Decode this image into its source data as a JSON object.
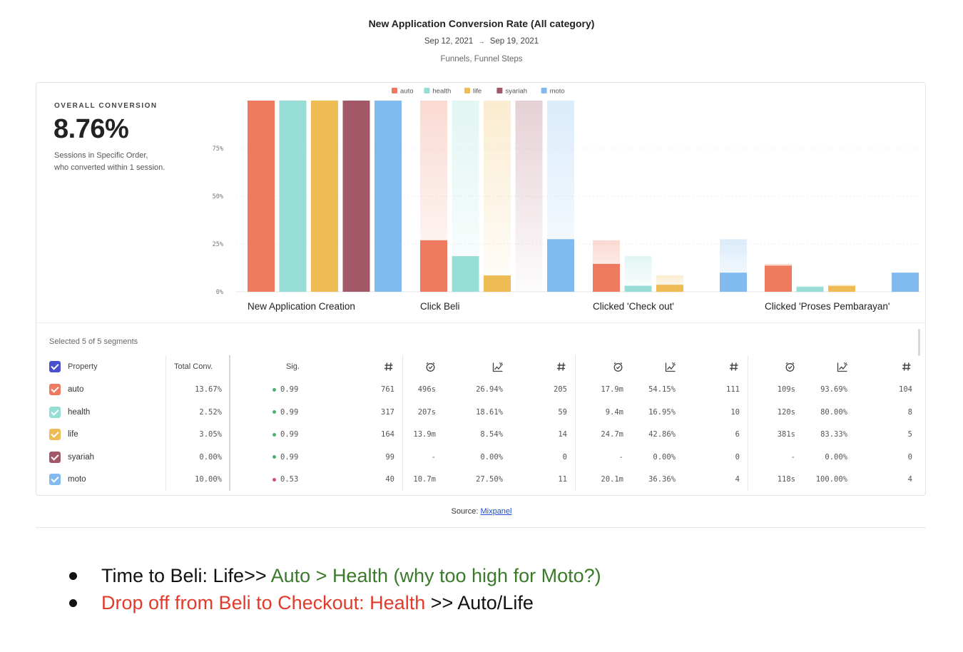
{
  "header": {
    "title": "New Application Conversion Rate (All category)",
    "date_start": "Sep 12, 2021",
    "date_arrow": "→",
    "date_end": "Sep 19, 2021",
    "subtitle": "Funnels, Funnel Steps"
  },
  "summary": {
    "label": "OVERALL CONVERSION",
    "value": "8.76%",
    "desc_line1": "Sessions in Specific Order,",
    "desc_line2": "who converted within 1 session."
  },
  "colors": {
    "auto": "#ee7b5f",
    "health": "#95ddd5",
    "life": "#eebb55",
    "syariah": "#a35868",
    "moto": "#80baee"
  },
  "chart_data": {
    "type": "bar",
    "categories": [
      "New Application Creation",
      "Click Beli",
      "Clicked 'Check out'",
      "Clicked 'Proses Pembarayan'"
    ],
    "y_ticks": [
      "0%",
      "25%",
      "50%",
      "75%"
    ],
    "ylim": [
      0,
      100
    ],
    "legend_position": "top-center",
    "series": [
      {
        "name": "auto",
        "values": [
          100,
          26.94,
          14.59,
          13.67
        ],
        "previous": [
          100,
          100,
          26.94,
          14.59
        ]
      },
      {
        "name": "health",
        "values": [
          100,
          18.61,
          3.15,
          2.52
        ],
        "previous": [
          100,
          100,
          18.61,
          3.15
        ]
      },
      {
        "name": "life",
        "values": [
          100,
          8.54,
          3.66,
          3.05
        ],
        "previous": [
          100,
          100,
          8.54,
          3.66
        ]
      },
      {
        "name": "syariah",
        "values": [
          100,
          0,
          0,
          0
        ],
        "previous": [
          100,
          100,
          0,
          0
        ]
      },
      {
        "name": "moto",
        "values": [
          100,
          27.5,
          10,
          10
        ],
        "previous": [
          100,
          100,
          27.5,
          10
        ]
      }
    ]
  },
  "table": {
    "selected_label": "Selected 5 of 5 segments",
    "headers": {
      "property": "Property",
      "total_conv": "Total Conv.",
      "sig": "Sig."
    },
    "header_icons": [
      "hash-icon",
      "clock-check-icon",
      "chart-percent-icon",
      "hash-icon",
      "clock-check-icon",
      "chart-percent-icon",
      "hash-icon",
      "clock-check-icon",
      "chart-percent-icon",
      "hash-icon"
    ],
    "rows": [
      {
        "name": "auto",
        "total": "13.67%",
        "sig": "0.99",
        "sig_color": "#4caf6e",
        "cells": [
          "761",
          "496s",
          "26.94%",
          "205",
          "17.9m",
          "54.15%",
          "111",
          "109s",
          "93.69%",
          "104"
        ]
      },
      {
        "name": "health",
        "total": "2.52%",
        "sig": "0.99",
        "sig_color": "#4caf6e",
        "cells": [
          "317",
          "207s",
          "18.61%",
          "59",
          "9.4m",
          "16.95%",
          "10",
          "120s",
          "80.00%",
          "8"
        ]
      },
      {
        "name": "life",
        "total": "3.05%",
        "sig": "0.99",
        "sig_color": "#4caf6e",
        "cells": [
          "164",
          "13.9m",
          "8.54%",
          "14",
          "24.7m",
          "42.86%",
          "6",
          "381s",
          "83.33%",
          "5"
        ]
      },
      {
        "name": "syariah",
        "total": "0.00%",
        "sig": "0.99",
        "sig_color": "#4caf6e",
        "cells": [
          "99",
          "-",
          "0.00%",
          "0",
          "-",
          "0.00%",
          "0",
          "-",
          "0.00%",
          "0"
        ]
      },
      {
        "name": "moto",
        "total": "10.00%",
        "sig": "0.53",
        "sig_color": "#d0506a",
        "cells": [
          "40",
          "10.7m",
          "27.50%",
          "11",
          "20.1m",
          "36.36%",
          "4",
          "118s",
          "100.00%",
          "4"
        ]
      }
    ]
  },
  "source": {
    "label": "Source:",
    "link": "Mixpanel"
  },
  "notes": {
    "line1_a": "Time to Beli: Life>> ",
    "line1_b": "Auto > Health (why too high for Moto?)",
    "line2_a": "Drop off from Beli to Checkout: Health",
    "line2_b": " >> Auto/Life"
  }
}
